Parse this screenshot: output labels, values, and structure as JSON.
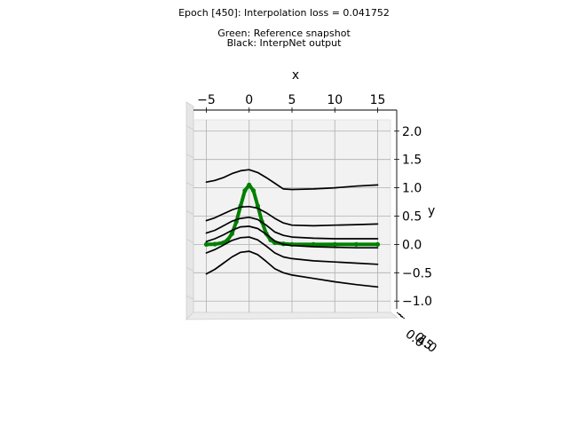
{
  "chart_data": {
    "type": "line",
    "title": "Epoch [450]: Interpolation loss = 0.041752",
    "subtitle": [
      "Green: Reference snapshot",
      "Black: InterpNet output"
    ],
    "xlabel": "x",
    "ylabel": "y",
    "xlim": [
      -6.5,
      16.5
    ],
    "ylim": [
      -1.2,
      2.2
    ],
    "x_ticks": [
      "−5",
      "0",
      "5",
      "10",
      "15"
    ],
    "x_tick_values": [
      -5,
      0,
      5,
      10,
      15
    ],
    "y_ticks": [
      "2.0",
      "1.5",
      "1.0",
      "0.5",
      "0.0",
      "−0.5",
      "−1.0"
    ],
    "y_tick_values": [
      2.0,
      1.5,
      1.0,
      0.5,
      0.0,
      -0.5,
      -1.0
    ],
    "z_tick_labels": [
      "0.0",
      "0.5",
      "1.0"
    ],
    "grid": true,
    "series": [
      {
        "color": "#008000",
        "x": [
          -5,
          -4,
          -3,
          -2.5,
          -2,
          -1.5,
          -1,
          -0.5,
          0,
          0.5,
          1,
          1.5,
          2,
          2.5,
          3,
          4,
          5,
          7.5,
          10,
          12.5,
          15
        ],
        "values": [
          0.0,
          0.005,
          0.03,
          0.08,
          0.19,
          0.4,
          0.68,
          0.95,
          1.05,
          0.95,
          0.68,
          0.4,
          0.19,
          0.08,
          0.03,
          0.01,
          0.0,
          0.0,
          0.0,
          0.0,
          0.0
        ]
      },
      {
        "color": "#000000",
        "x": [
          -5,
          -4,
          -3,
          -2,
          -1,
          0,
          1,
          2,
          3,
          4,
          5,
          7.5,
          10,
          12.5,
          15
        ],
        "values": [
          1.1,
          1.13,
          1.18,
          1.25,
          1.3,
          1.32,
          1.27,
          1.18,
          1.08,
          0.98,
          0.97,
          0.98,
          1.0,
          1.03,
          1.05
        ]
      },
      {
        "color": "#000000",
        "x": [
          -5,
          -4,
          -3,
          -2,
          -1,
          0,
          1,
          2,
          3,
          4,
          5,
          7.5,
          10,
          12.5,
          15
        ],
        "values": [
          0.42,
          0.47,
          0.54,
          0.61,
          0.66,
          0.67,
          0.64,
          0.56,
          0.46,
          0.38,
          0.34,
          0.33,
          0.34,
          0.35,
          0.36
        ]
      },
      {
        "color": "#000000",
        "x": [
          -5,
          -4,
          -3,
          -2,
          -1,
          0,
          1,
          2,
          3,
          4,
          5,
          7.5,
          10,
          12.5,
          15
        ],
        "values": [
          0.2,
          0.25,
          0.33,
          0.41,
          0.46,
          0.48,
          0.44,
          0.34,
          0.22,
          0.16,
          0.13,
          0.11,
          0.1,
          0.1,
          0.1
        ]
      },
      {
        "color": "#000000",
        "x": [
          -5,
          -4,
          -3,
          -2,
          -1,
          0,
          1,
          2,
          3,
          4,
          5,
          7.5,
          10,
          12.5,
          15
        ],
        "values": [
          0.05,
          0.1,
          0.17,
          0.25,
          0.31,
          0.32,
          0.28,
          0.18,
          0.06,
          0.0,
          -0.02,
          -0.04,
          -0.05,
          -0.06,
          -0.06
        ]
      },
      {
        "color": "#000000",
        "x": [
          -5,
          -4,
          -3,
          -2,
          -1,
          0,
          1,
          2,
          3,
          4,
          5,
          7.5,
          10,
          12.5,
          15
        ],
        "values": [
          -0.15,
          -0.09,
          -0.01,
          0.07,
          0.12,
          0.13,
          0.08,
          -0.03,
          -0.15,
          -0.22,
          -0.25,
          -0.29,
          -0.31,
          -0.33,
          -0.35
        ]
      },
      {
        "color": "#000000",
        "x": [
          -5,
          -4,
          -3,
          -2,
          -1,
          0,
          1,
          2,
          3,
          4,
          5,
          7.5,
          10,
          12.5,
          15
        ],
        "values": [
          -0.52,
          -0.44,
          -0.33,
          -0.22,
          -0.14,
          -0.12,
          -0.18,
          -0.3,
          -0.43,
          -0.5,
          -0.54,
          -0.6,
          -0.66,
          -0.71,
          -0.75
        ]
      }
    ]
  }
}
